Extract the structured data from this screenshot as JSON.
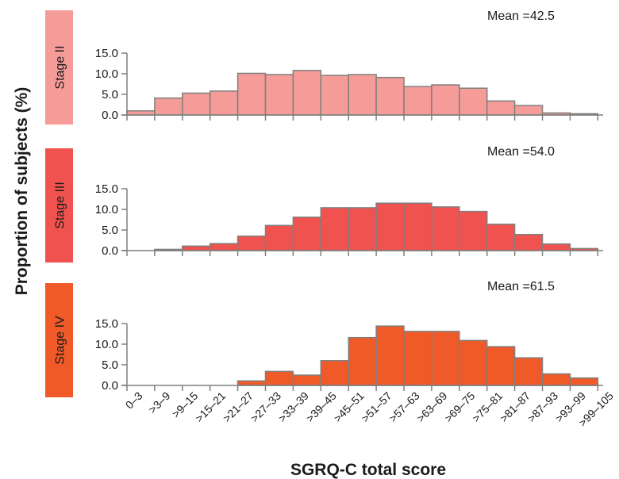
{
  "chart_data": {
    "type": "bar",
    "title": "",
    "xlabel": "SGRQ-C total score",
    "ylabel": "Proportion of subjects (%)",
    "categories": [
      "0–3",
      ">3–9",
      ">9–15",
      ">15–21",
      ">21–27",
      ">27–33",
      ">33–39",
      ">39–45",
      ">45–51",
      ">51–57",
      ">57–63",
      ">63–69",
      ">69–75",
      ">75–81",
      ">81–87",
      ">87–93",
      ">93–99",
      ">99–105"
    ],
    "ylim": [
      0,
      15
    ],
    "yticks": [
      "0.0",
      "5.0",
      "10.0",
      "15.0"
    ],
    "grid": false,
    "panels": [
      {
        "name": "Stage II",
        "color": "#f59c98",
        "mean_label": "Mean =42.5",
        "values": [
          1.0,
          4.1,
          5.3,
          5.8,
          10.1,
          9.8,
          10.8,
          9.6,
          9.8,
          9.1,
          6.9,
          7.3,
          6.5,
          3.4,
          2.3,
          0.5,
          0.3,
          0
        ]
      },
      {
        "name": "Stage III",
        "color": "#f0534f",
        "mean_label": "Mean =54.0",
        "values": [
          0,
          0.3,
          1.1,
          1.7,
          3.5,
          6.1,
          8.1,
          10.4,
          10.4,
          11.5,
          11.5,
          10.6,
          9.5,
          6.4,
          3.9,
          1.6,
          0.5,
          0
        ]
      },
      {
        "name": "Stage IV",
        "color": "#f05a28",
        "mean_label": "Mean =61.5",
        "values": [
          0,
          0,
          0,
          0,
          1.1,
          3.4,
          2.5,
          6.0,
          11.6,
          14.4,
          13.1,
          13.1,
          10.9,
          9.4,
          6.7,
          2.8,
          1.8,
          0
        ]
      }
    ]
  }
}
